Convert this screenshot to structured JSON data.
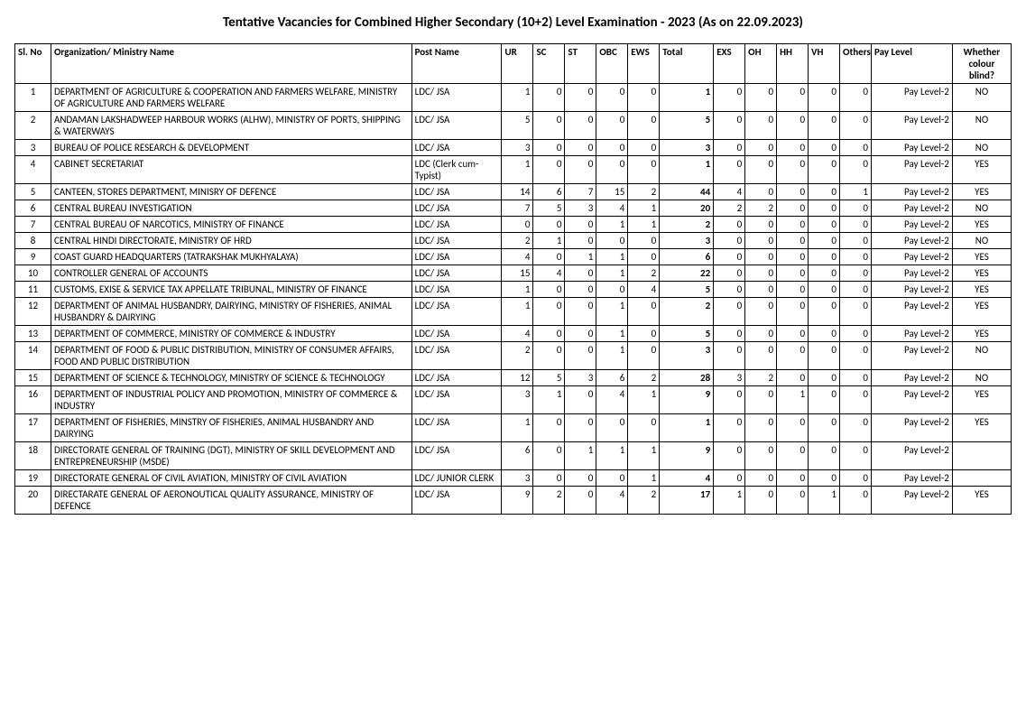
{
  "title": "Tentative Vacancies for Combined Higher Secondary (10+2) Level Examination - 2023 (As on 22.09.2023)",
  "columns": {
    "slno": "Sl. No",
    "org": "Organization/ Ministry Name",
    "post": "Post Name",
    "ur": "UR",
    "sc": "SC",
    "st": "ST",
    "obc": "OBC",
    "ews": "EWS",
    "total": "Total",
    "exs": "EXS",
    "oh": "OH",
    "hh": "HH",
    "vh": "VH",
    "others": "Others",
    "pay": "Pay Level",
    "cb": "Whether colour blind?"
  },
  "rows": [
    {
      "slno": "1",
      "org": "DEPARTMENT OF AGRICULTURE & COOPERATION AND FARMERS WELFARE, MINISTRY OF AGRICULTURE AND FARMERS WELFARE",
      "post": "LDC/ JSA",
      "ur": "1",
      "sc": "0",
      "st": "0",
      "obc": "0",
      "ews": "0",
      "total": "1",
      "exs": "0",
      "oh": "0",
      "hh": "0",
      "vh": "0",
      "others": "0",
      "pay": "Pay Level-2",
      "cb": "NO"
    },
    {
      "slno": "2",
      "org": "ANDAMAN LAKSHADWEEP HARBOUR WORKS (ALHW), MINISTRY OF PORTS, SHIPPING & WATERWAYS",
      "post": "LDC/ JSA",
      "ur": "5",
      "sc": "0",
      "st": "0",
      "obc": "0",
      "ews": "0",
      "total": "5",
      "exs": "0",
      "oh": "0",
      "hh": "0",
      "vh": "0",
      "others": "0",
      "pay": "Pay Level-2",
      "cb": "NO"
    },
    {
      "slno": "3",
      "org": "BUREAU OF POLICE RESEARCH & DEVELOPMENT",
      "post": "LDC/ JSA",
      "ur": "3",
      "sc": "0",
      "st": "0",
      "obc": "0",
      "ews": "0",
      "total": "3",
      "exs": "0",
      "oh": "0",
      "hh": "0",
      "vh": "0",
      "others": "0",
      "pay": "Pay Level-2",
      "cb": "NO"
    },
    {
      "slno": "4",
      "org": "CABINET SECRETARIAT",
      "post": "LDC (Clerk cum-Typist)",
      "ur": "1",
      "sc": "0",
      "st": "0",
      "obc": "0",
      "ews": "0",
      "total": "1",
      "exs": "0",
      "oh": "0",
      "hh": "0",
      "vh": "0",
      "others": "0",
      "pay": "Pay Level-2",
      "cb": "YES"
    },
    {
      "slno": "5",
      "org": "CANTEEN, STORES DEPARTMENT, MINISRY OF DEFENCE",
      "post": "LDC/ JSA",
      "ur": "14",
      "sc": "6",
      "st": "7",
      "obc": "15",
      "ews": "2",
      "total": "44",
      "exs": "4",
      "oh": "0",
      "hh": "0",
      "vh": "0",
      "others": "1",
      "pay": "Pay Level-2",
      "cb": "YES"
    },
    {
      "slno": "6",
      "org": "CENTRAL BUREAU INVESTIGATION",
      "post": "LDC/ JSA",
      "ur": "7",
      "sc": "5",
      "st": "3",
      "obc": "4",
      "ews": "1",
      "total": "20",
      "exs": "2",
      "oh": "2",
      "hh": "0",
      "vh": "0",
      "others": "0",
      "pay": "Pay Level-2",
      "cb": "NO"
    },
    {
      "slno": "7",
      "org": "CENTRAL BUREAU OF NARCOTICS, MINISTRY OF FINANCE",
      "post": "LDC/ JSA",
      "ur": "0",
      "sc": "0",
      "st": "0",
      "obc": "1",
      "ews": "1",
      "total": "2",
      "exs": "0",
      "oh": "0",
      "hh": "0",
      "vh": "0",
      "others": "0",
      "pay": "Pay Level-2",
      "cb": "YES"
    },
    {
      "slno": "8",
      "org": "CENTRAL HINDI DIRECTORATE, MINISTRY OF HRD",
      "post": "LDC/ JSA",
      "ur": "2",
      "sc": "1",
      "st": "0",
      "obc": "0",
      "ews": "0",
      "total": "3",
      "exs": "0",
      "oh": "0",
      "hh": "0",
      "vh": "0",
      "others": "0",
      "pay": "Pay Level-2",
      "cb": "NO"
    },
    {
      "slno": "9",
      "org": "COAST GUARD HEADQUARTERS (TATRAKSHAK MUKHYALAYA)",
      "post": "LDC/ JSA",
      "ur": "4",
      "sc": "0",
      "st": "1",
      "obc": "1",
      "ews": "0",
      "total": "6",
      "exs": "0",
      "oh": "0",
      "hh": "0",
      "vh": "0",
      "others": "0",
      "pay": "Pay Level-2",
      "cb": "YES"
    },
    {
      "slno": "10",
      "org": "CONTROLLER GENERAL OF ACCOUNTS",
      "post": "LDC/ JSA",
      "ur": "15",
      "sc": "4",
      "st": "0",
      "obc": "1",
      "ews": "2",
      "total": "22",
      "exs": "0",
      "oh": "0",
      "hh": "0",
      "vh": "0",
      "others": "0",
      "pay": "Pay Level-2",
      "cb": "YES"
    },
    {
      "slno": "11",
      "org": "CUSTOMS, EXISE & SERVICE TAX APPELLATE TRIBUNAL, MINISTRY OF FINANCE",
      "post": "LDC/ JSA",
      "ur": "1",
      "sc": "0",
      "st": "0",
      "obc": "0",
      "ews": "4",
      "total": "5",
      "exs": "0",
      "oh": "0",
      "hh": "0",
      "vh": "0",
      "others": "0",
      "pay": "Pay Level-2",
      "cb": "YES"
    },
    {
      "slno": "12",
      "org": "DEPARTMENT OF ANIMAL HUSBANDRY, DAIRYING, MINISTRY OF FISHERIES, ANIMAL HUSBANDRY & DAIRYING",
      "post": "LDC/ JSA",
      "ur": "1",
      "sc": "0",
      "st": "0",
      "obc": "1",
      "ews": "0",
      "total": "2",
      "exs": "0",
      "oh": "0",
      "hh": "0",
      "vh": "0",
      "others": "0",
      "pay": "Pay Level-2",
      "cb": "YES"
    },
    {
      "slno": "13",
      "org": "DEPARTMENT OF COMMERCE, MINISTRY OF COMMERCE & INDUSTRY",
      "post": "LDC/ JSA",
      "ur": "4",
      "sc": "0",
      "st": "0",
      "obc": "1",
      "ews": "0",
      "total": "5",
      "exs": "0",
      "oh": "0",
      "hh": "0",
      "vh": "0",
      "others": "0",
      "pay": "Pay Level-2",
      "cb": "YES"
    },
    {
      "slno": "14",
      "org": "DEPARTMENT OF FOOD & PUBLIC DISTRIBUTION, MINISTRY OF CONSUMER AFFAIRS, FOOD AND PUBLIC DISTRIBUTION",
      "post": "LDC/ JSA",
      "ur": "2",
      "sc": "0",
      "st": "0",
      "obc": "1",
      "ews": "0",
      "total": "3",
      "exs": "0",
      "oh": "0",
      "hh": "0",
      "vh": "0",
      "others": "0",
      "pay": "Pay Level-2",
      "cb": "NO"
    },
    {
      "slno": "15",
      "org": "DEPARTMENT OF SCIENCE & TECHNOLOGY, MINISTRY OF SCIENCE & TECHNOLOGY",
      "post": "LDC/ JSA",
      "ur": "12",
      "sc": "5",
      "st": "3",
      "obc": "6",
      "ews": "2",
      "total": "28",
      "exs": "3",
      "oh": "2",
      "hh": "0",
      "vh": "0",
      "others": "0",
      "pay": "Pay Level-2",
      "cb": "NO"
    },
    {
      "slno": "16",
      "org": "DEPARTMENT OF  INDUSTRIAL POLICY AND PROMOTION, MINISTRY OF COMMERCE & INDUSTRY",
      "post": "LDC/ JSA",
      "ur": "3",
      "sc": "1",
      "st": "0",
      "obc": "4",
      "ews": "1",
      "total": "9",
      "exs": "0",
      "oh": "0",
      "hh": "1",
      "vh": "0",
      "others": "0",
      "pay": "Pay Level-2",
      "cb": "YES"
    },
    {
      "slno": "17",
      "org": "DEPARTMENT OF FISHERIES, MINSTRY OF FISHERIES, ANIMAL HUSBANDRY AND DAIRYING",
      "post": "LDC/ JSA",
      "ur": "1",
      "sc": "0",
      "st": "0",
      "obc": "0",
      "ews": "0",
      "total": "1",
      "exs": "0",
      "oh": "0",
      "hh": "0",
      "vh": "0",
      "others": "0",
      "pay": "Pay Level-2",
      "cb": "YES"
    },
    {
      "slno": "18",
      "org": "DIRECTORATE GENERAL OF TRAINING (DGT), MINISTRY OF SKILL DEVELOPMENT AND ENTREPRENEURSHIP (MSDE)",
      "post": "LDC/ JSA",
      "ur": "6",
      "sc": "0",
      "st": "1",
      "obc": "1",
      "ews": "1",
      "total": "9",
      "exs": "0",
      "oh": "0",
      "hh": "0",
      "vh": "0",
      "others": "0",
      "pay": "Pay Level-2",
      "cb": ""
    },
    {
      "slno": "19",
      "org": "DIRECTORATE GENERAL OF CIVIL AVIATION, MINISTRY OF CIVIL AVIATION",
      "post": "LDC/ JUNIOR CLERK",
      "ur": "3",
      "sc": "0",
      "st": "0",
      "obc": "0",
      "ews": "1",
      "total": "4",
      "exs": "0",
      "oh": "0",
      "hh": "0",
      "vh": "0",
      "others": "0",
      "pay": "Pay Level-2",
      "cb": ""
    },
    {
      "slno": "20",
      "org": "DIRECTARATE GENERAL OF AERONOUTICAL QUALITY ASSURANCE, MINISTRY OF DEFENCE",
      "post": "LDC/ JSA",
      "ur": "9",
      "sc": "2",
      "st": "0",
      "obc": "4",
      "ews": "2",
      "total": "17",
      "exs": "1",
      "oh": "0",
      "hh": "0",
      "vh": "1",
      "others": "0",
      "pay": "Pay Level-2",
      "cb": "YES"
    }
  ]
}
